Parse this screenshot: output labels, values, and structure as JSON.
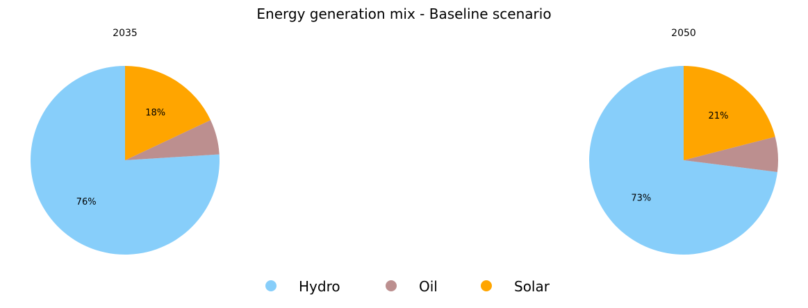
{
  "chart_data": {
    "type": "pie",
    "title": "Energy generation mix - Baseline scenario",
    "legend": {
      "placement": "bottom-center",
      "entries": [
        "Hydro",
        "Oil",
        "Solar"
      ]
    },
    "colors": {
      "Hydro": "#87CEFA",
      "Oil": "#BC8F8F",
      "Solar": "#FFA500"
    },
    "start_angle_deg": 90,
    "direction": "counterclockwise",
    "pies": [
      {
        "title": "2035",
        "slices": [
          {
            "label": "Hydro",
            "value": 76,
            "pct_label": "76%"
          },
          {
            "label": "Oil",
            "value": 6,
            "pct_label": ""
          },
          {
            "label": "Solar",
            "value": 18,
            "pct_label": "18%"
          }
        ]
      },
      {
        "title": "2050",
        "slices": [
          {
            "label": "Hydro",
            "value": 73,
            "pct_label": "73%"
          },
          {
            "label": "Oil",
            "value": 6,
            "pct_label": ""
          },
          {
            "label": "Solar",
            "value": 21,
            "pct_label": "21%"
          }
        ]
      }
    ]
  }
}
